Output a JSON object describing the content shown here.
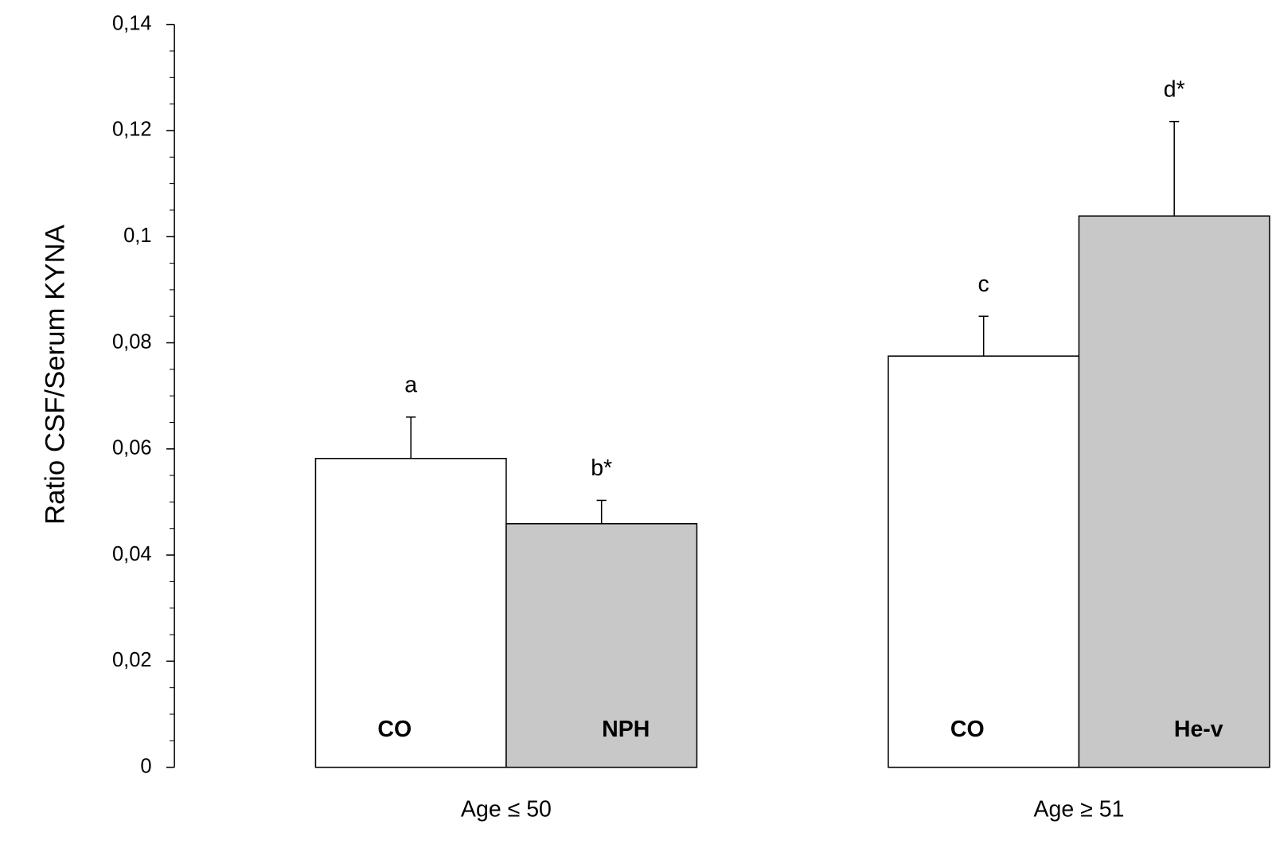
{
  "chart_data": {
    "type": "bar",
    "y_label": "Ratio CSF/Serum KYNA",
    "ylim": [
      0,
      0.14
    ],
    "yticks": [
      0,
      {
        "value": 0.02,
        "label": "0,02"
      },
      {
        "value": 0.04,
        "label": "0,04"
      },
      {
        "value": 0.06,
        "label": "0,06"
      },
      {
        "value": 0.08,
        "label": "0,08"
      },
      {
        "value": 0.1,
        "label": "0,1"
      },
      {
        "value": 0.12,
        "label": "0,12"
      },
      {
        "value": 0.14,
        "label": "0,14"
      }
    ],
    "yminorticks": [
      0.005,
      0.01,
      0.015,
      0.025,
      0.03,
      0.035,
      0.045,
      0.05,
      0.055,
      0.065,
      0.07,
      0.075,
      0.085,
      0.09,
      0.095,
      0.105,
      0.11,
      0.115,
      0.125,
      0.13,
      0.135
    ],
    "groups": [
      {
        "name": "Age ≤ 50",
        "bars": [
          {
            "label": "CO",
            "value": 0.0582,
            "error": 0.0078,
            "annotation": "a",
            "color": "#ffffff"
          },
          {
            "label": "NPH",
            "value": 0.0459,
            "error": 0.0044,
            "annotation": "b*",
            "color": "#c8c8c8"
          }
        ]
      },
      {
        "name": "Age ≥ 51",
        "bars": [
          {
            "label": "CO",
            "value": 0.0775,
            "error": 0.0075,
            "annotation": "c",
            "color": "#ffffff"
          },
          {
            "label": "He-v",
            "value": 0.1039,
            "error": 0.0178,
            "annotation": "d*",
            "color": "#c8c8c8"
          }
        ]
      }
    ]
  }
}
